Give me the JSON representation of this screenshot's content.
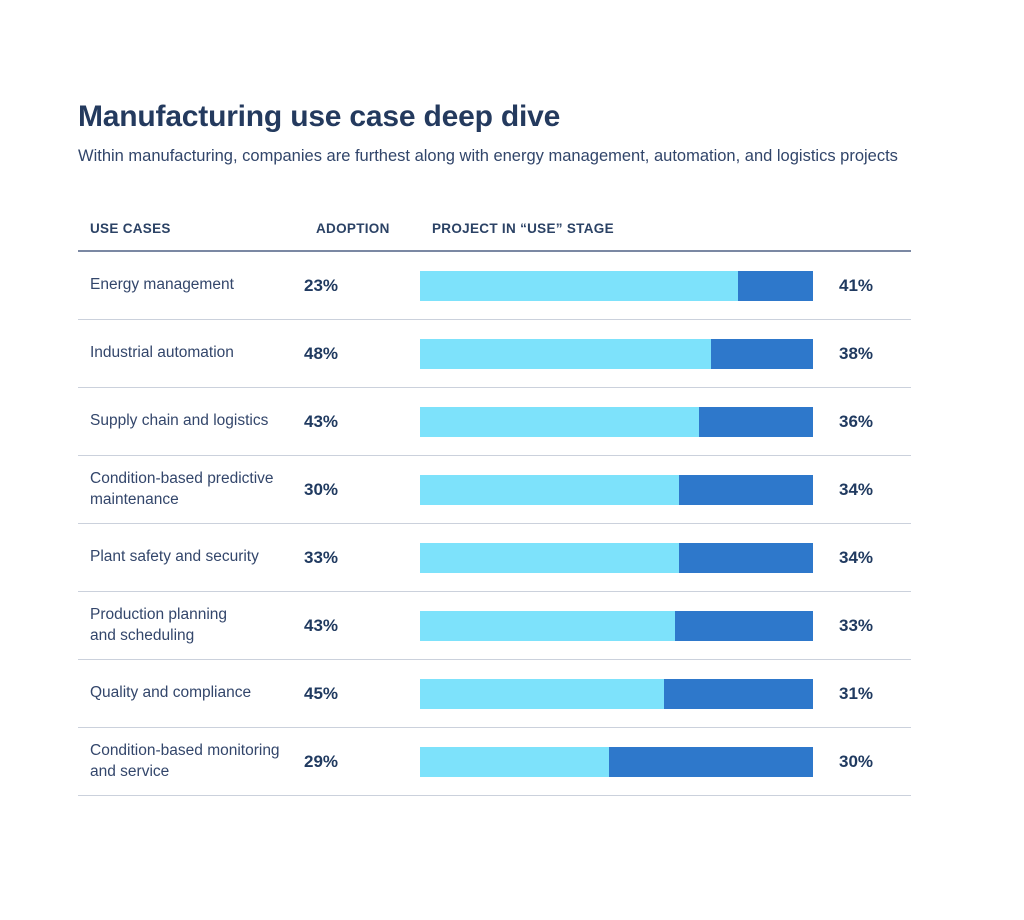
{
  "page": {
    "title": "Manufacturing use case deep dive",
    "subtitle": "Within manufacturing, companies are furthest along with energy management, automation, and logistics projects"
  },
  "colors": {
    "title_navy": "#243A5E",
    "body_text": "#33466B",
    "bar_light_segment": "#7DE2FB",
    "bar_dark_segment": "#2E78CB",
    "header_rule": "#7B88A3",
    "row_divider": "#CBD1DC"
  },
  "table": {
    "headers": [
      "USE CASES",
      "ADOPTION",
      "PROJECT IN “USE” STAGE"
    ],
    "rows": [
      {
        "use_case": "Energy management",
        "adoption": "23%",
        "use_stage": "41%",
        "bar_light_pct": 81
      },
      {
        "use_case": "Industrial automation",
        "adoption": "48%",
        "use_stage": "38%",
        "bar_light_pct": 74
      },
      {
        "use_case": "Supply chain and logistics",
        "adoption": "43%",
        "use_stage": "36%",
        "bar_light_pct": 71
      },
      {
        "use_case": "Condition-based predictive\nmaintenance",
        "adoption": "30%",
        "use_stage": "34%",
        "bar_light_pct": 66
      },
      {
        "use_case": "Plant safety and security",
        "adoption": "33%",
        "use_stage": "34%",
        "bar_light_pct": 66
      },
      {
        "use_case": "Production planning\nand scheduling",
        "adoption": "43%",
        "use_stage": "33%",
        "bar_light_pct": 65
      },
      {
        "use_case": "Quality and compliance",
        "adoption": "45%",
        "use_stage": "31%",
        "bar_light_pct": 62
      },
      {
        "use_case": "Condition-based monitoring\nand service",
        "adoption": "29%",
        "use_stage": "30%",
        "bar_light_pct": 48
      }
    ]
  },
  "chart_data": {
    "type": "bar",
    "orientation": "horizontal-stacked",
    "title": "Manufacturing use case deep dive",
    "subtitle": "Within manufacturing, companies are furthest along with energy management, automation, and logistics projects",
    "categories": [
      "Energy management",
      "Industrial automation",
      "Supply chain and logistics",
      "Condition-based predictive maintenance",
      "Plant safety and security",
      "Production planning and scheduling",
      "Quality and compliance",
      "Condition-based monitoring and service"
    ],
    "series": [
      {
        "name": "Adoption",
        "unit": "%",
        "values": [
          23,
          48,
          43,
          30,
          33,
          43,
          45,
          29
        ]
      },
      {
        "name": "Project in \"use\" stage",
        "unit": "%",
        "values": [
          41,
          38,
          36,
          34,
          34,
          33,
          31,
          30
        ]
      }
    ],
    "bar_segment_fractions": {
      "note": "each row's fixed-width track is split light/dark; fraction of track that is light cyan",
      "light": [
        0.81,
        0.74,
        0.71,
        0.66,
        0.66,
        0.65,
        0.62,
        0.48
      ],
      "dark": [
        0.19,
        0.26,
        0.29,
        0.34,
        0.34,
        0.35,
        0.38,
        0.52
      ]
    },
    "colors": {
      "light_segment": "#7DE2FB",
      "dark_segment": "#2E78CB"
    },
    "legend": "none",
    "grid": "off",
    "value_labels": "adoption % in middle column, use-stage % right of each bar"
  }
}
